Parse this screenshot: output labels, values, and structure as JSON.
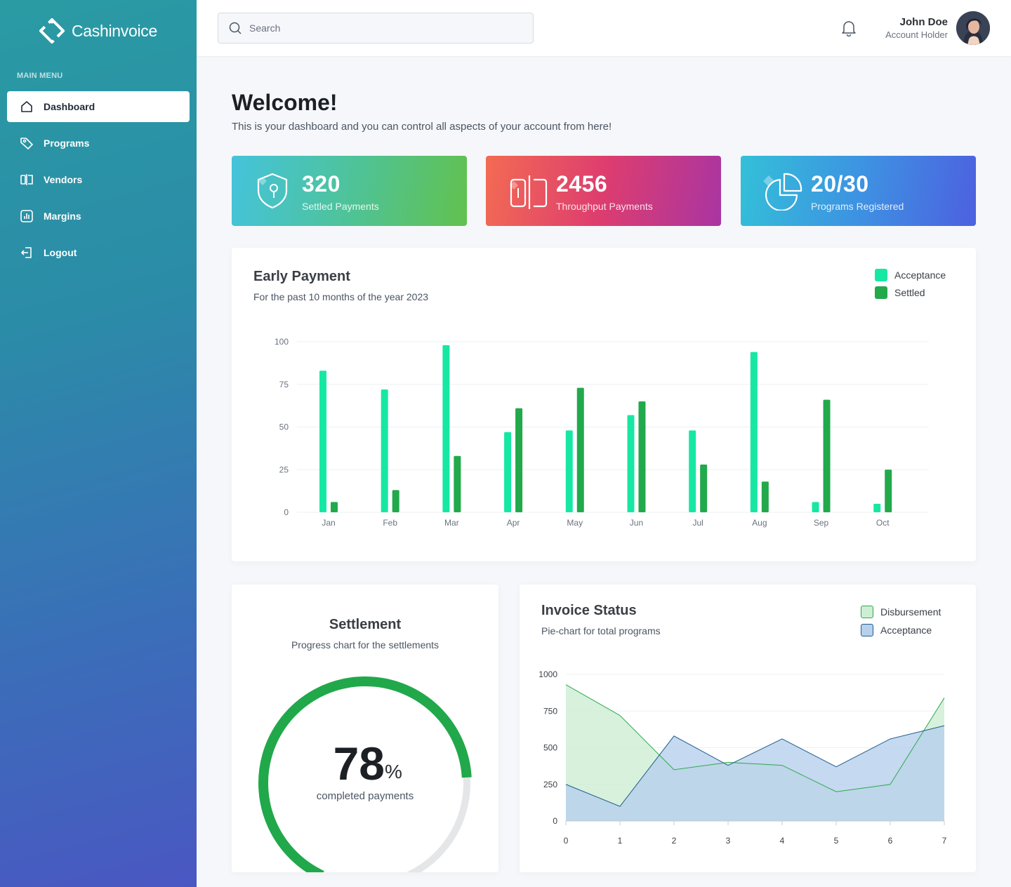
{
  "brand": {
    "name": "Cashinvoice"
  },
  "sidebar": {
    "menu_title": "MAIN MENU",
    "items": [
      {
        "label": "Dashboard",
        "icon": "home-icon",
        "active": true
      },
      {
        "label": "Programs",
        "icon": "tag-icon"
      },
      {
        "label": "Vendors",
        "icon": "vendors-icon"
      },
      {
        "label": "Margins",
        "icon": "chart-icon"
      },
      {
        "label": "Logout",
        "icon": "logout-icon"
      }
    ]
  },
  "header": {
    "search_placeholder": "Search",
    "user": {
      "name": "John Doe",
      "role": "Account Holder"
    }
  },
  "main": {
    "welcome": "Welcome!",
    "subtitle": "This is your dashboard and you can control all aspects of your account from here!",
    "stats": [
      {
        "value": "320",
        "label": "Settled Payments",
        "icon": "shield-icon"
      },
      {
        "value": "2456",
        "label": "Throughput Payments",
        "icon": "vendors-icon"
      },
      {
        "value": "20/30",
        "label": "Programs Registered",
        "icon": "pie-icon"
      }
    ]
  },
  "early_payment": {
    "title": "Early Payment",
    "subtitle": "For the past 10 months of the year 2023",
    "legend": [
      {
        "name": "Acceptance",
        "color": "#16e8a3"
      },
      {
        "name": "Settled",
        "color": "#22a94b"
      }
    ]
  },
  "settlement": {
    "title": "Settlement",
    "subtitle": "Progress chart for the settlements",
    "value": "78",
    "unit": "%",
    "caption": "completed payments",
    "fraction": 0.78,
    "color": "#21a84a"
  },
  "invoice_status": {
    "title": "Invoice Status",
    "subtitle": "Pie-chart for total programs",
    "legend": [
      {
        "name": "Disbursement",
        "color": "#cdeed3"
      },
      {
        "name": "Acceptance",
        "color": "#b7d0ec"
      }
    ]
  },
  "chart_data": [
    {
      "type": "bar",
      "categories": [
        "Jan",
        "Feb",
        "Mar",
        "Apr",
        "May",
        "Jun",
        "Jul",
        "Aug",
        "Sep",
        "Oct"
      ],
      "series": [
        {
          "name": "Acceptance",
          "values": [
            83,
            72,
            98,
            47,
            48,
            57,
            48,
            94,
            6,
            5
          ],
          "color": "#16e8a3"
        },
        {
          "name": "Settled",
          "values": [
            6,
            13,
            33,
            61,
            73,
            65,
            28,
            18,
            66,
            25
          ],
          "color": "#22a94b"
        }
      ],
      "yticks": [
        0,
        25,
        50,
        75,
        100
      ],
      "ylim": [
        0,
        100
      ],
      "grid": true,
      "legend_position": "top-right"
    },
    {
      "type": "area",
      "x": [
        0,
        1,
        2,
        3,
        4,
        5,
        6,
        7
      ],
      "series": [
        {
          "name": "Disbursement",
          "values": [
            930,
            720,
            350,
            400,
            380,
            200,
            250,
            840
          ],
          "fill": "#cdeed3",
          "stroke": "#2fa84f"
        },
        {
          "name": "Acceptance",
          "values": [
            250,
            100,
            580,
            380,
            560,
            370,
            560,
            650
          ],
          "fill": "#b7d0ec",
          "stroke": "#1e5e8c"
        }
      ],
      "yticks": [
        0,
        250,
        500,
        750,
        1000
      ],
      "ylim": [
        0,
        1000
      ],
      "xticks": [
        0,
        1,
        2,
        3,
        4,
        5,
        6,
        7
      ],
      "grid": true,
      "legend_position": "top-right"
    }
  ]
}
